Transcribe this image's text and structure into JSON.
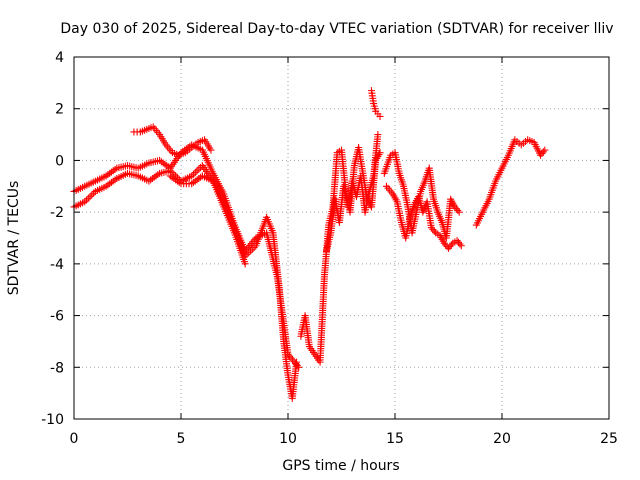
{
  "chart_data": {
    "type": "scatter",
    "title": "Day 030 of 2025, Sidereal Day-to-day VTEC variation (SDTVAR) for receiver lliv",
    "xlabel": "GPS time / hours",
    "ylabel": "SDTVAR / TECUs",
    "xlim": [
      0,
      25
    ],
    "ylim": [
      -10,
      4
    ],
    "x_ticks": [
      "0",
      "5",
      "10",
      "15",
      "20",
      "25"
    ],
    "y_ticks": [
      "-10",
      "-8",
      "-6",
      "-4",
      "-2",
      "0",
      "2",
      "4"
    ],
    "grid": true,
    "legend": "none",
    "marker": "plus",
    "color": "#ff0000",
    "series": [
      {
        "x": [
          0.0,
          0.5,
          1.0,
          1.5,
          2.0,
          2.5,
          3.0,
          3.5,
          4.0,
          4.5,
          5.0,
          5.5,
          6.0,
          6.5,
          7.0,
          7.5,
          8.0,
          8.5,
          9.0,
          9.5,
          10.0,
          10.5
        ],
        "y": [
          -1.2,
          -1.0,
          -0.8,
          -0.6,
          -0.3,
          -0.2,
          -0.3,
          -0.1,
          0.0,
          -0.3,
          0.3,
          0.6,
          0.4,
          -0.5,
          -1.3,
          -2.5,
          -3.5,
          -3.0,
          -2.8,
          -4.5,
          -7.5,
          -8.0
        ]
      },
      {
        "x": [
          0.0,
          0.5,
          1.0,
          1.5,
          2.0,
          2.5,
          3.0,
          3.5,
          4.0,
          4.5,
          5.0,
          5.5,
          6.0,
          6.5,
          7.0,
          7.5,
          8.0
        ],
        "y": [
          -1.8,
          -1.6,
          -1.2,
          -1.0,
          -0.7,
          -0.5,
          -0.6,
          -0.8,
          -0.5,
          -0.4,
          -0.8,
          -0.6,
          -0.2,
          -0.8,
          -1.8,
          -2.8,
          -4.0
        ]
      },
      {
        "x": [
          2.8,
          3.1,
          3.4,
          3.7,
          4.0,
          4.3,
          4.6,
          4.9,
          5.2,
          5.5,
          5.8,
          6.1,
          6.4
        ],
        "y": [
          1.1,
          1.1,
          1.2,
          1.3,
          1.0,
          0.6,
          0.3,
          0.2,
          0.3,
          0.5,
          0.7,
          0.8,
          0.4
        ]
      },
      {
        "x": [
          4.5,
          5.0,
          5.5,
          6.0,
          6.5,
          7.0,
          7.5,
          8.0,
          8.5,
          9.0,
          9.3,
          9.6,
          9.8,
          10.0,
          10.2,
          10.4
        ],
        "y": [
          -0.6,
          -0.9,
          -0.9,
          -0.6,
          -0.8,
          -1.6,
          -2.6,
          -3.7,
          -3.3,
          -2.2,
          -2.8,
          -5.0,
          -7.0,
          -8.3,
          -9.2,
          -7.8
        ]
      },
      {
        "x": [
          10.6,
          10.8,
          11.0,
          11.5,
          11.7,
          11.9,
          12.1,
          12.3,
          12.5,
          12.7,
          12.9,
          13.1,
          13.3,
          13.5,
          13.7,
          13.9,
          14.1,
          14.3
        ],
        "y": [
          -6.8,
          -6.0,
          -7.2,
          -7.8,
          -4.5,
          -2.5,
          -1.8,
          0.3,
          0.4,
          -1.2,
          -2.0,
          -0.2,
          0.5,
          -0.5,
          -1.5,
          -1.8,
          0.0,
          0.3
        ]
      },
      {
        "x": [
          11.8,
          12.0,
          12.2,
          12.4,
          12.6,
          12.8,
          13.0,
          13.2,
          13.4,
          13.6,
          13.8,
          14.0,
          14.2
        ],
        "y": [
          -3.5,
          -2.8,
          -1.5,
          -2.4,
          -1.0,
          -1.8,
          -0.8,
          -1.4,
          -0.6,
          -2.0,
          -1.2,
          -0.6,
          1.0
        ]
      },
      {
        "x": [
          13.9,
          14.0,
          14.1,
          14.2,
          14.3
        ],
        "y": [
          2.7,
          2.2,
          1.9,
          1.8,
          1.7
        ]
      },
      {
        "x": [
          14.5,
          14.8,
          15.0,
          15.2,
          15.4,
          15.6,
          15.8,
          16.0,
          16.2,
          16.4,
          16.6,
          16.8,
          17.0,
          17.2,
          17.4,
          17.6,
          17.8,
          18.0
        ],
        "y": [
          -0.5,
          0.2,
          0.3,
          -0.5,
          -1.0,
          -1.8,
          -2.8,
          -2.0,
          -1.2,
          -0.8,
          -0.3,
          -1.5,
          -2.0,
          -2.4,
          -3.0,
          -1.5,
          -1.8,
          -2.0
        ]
      },
      {
        "x": [
          14.6,
          14.9,
          15.1,
          15.3,
          15.5,
          15.7,
          15.9,
          16.1,
          16.3,
          16.5,
          16.7,
          16.9,
          17.1,
          17.3,
          17.5,
          17.7,
          17.9,
          18.1
        ],
        "y": [
          -1.0,
          -1.3,
          -1.6,
          -2.4,
          -3.0,
          -2.2,
          -1.7,
          -1.4,
          -2.0,
          -1.6,
          -2.6,
          -2.8,
          -2.9,
          -3.2,
          -3.4,
          -3.2,
          -3.1,
          -3.3
        ]
      },
      {
        "x": [
          18.8,
          19.1,
          19.4,
          19.7,
          20.0,
          20.3,
          20.6,
          20.9,
          21.2,
          21.5,
          21.8,
          22.0
        ],
        "y": [
          -2.5,
          -2.0,
          -1.5,
          -0.8,
          -0.3,
          0.2,
          0.8,
          0.6,
          0.8,
          0.7,
          0.2,
          0.4
        ]
      }
    ]
  }
}
